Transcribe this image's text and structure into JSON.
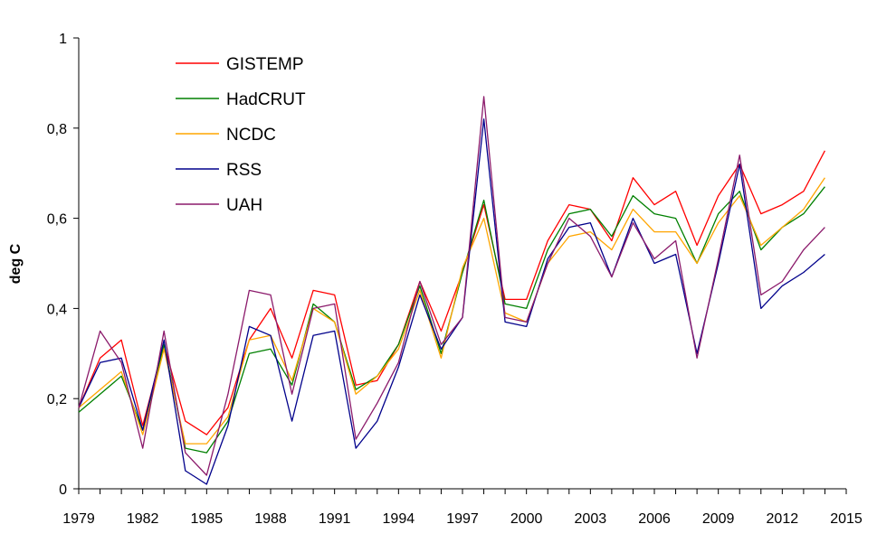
{
  "chart_data": {
    "type": "line",
    "title": "",
    "xlabel": "",
    "ylabel": "deg C",
    "xlim": [
      1979,
      2015
    ],
    "ylim": [
      0,
      1
    ],
    "x_ticks": [
      "1979",
      "1982",
      "1985",
      "1988",
      "1991",
      "1994",
      "1997",
      "2000",
      "2003",
      "2006",
      "2009",
      "2012",
      "2015"
    ],
    "y_ticks": [
      "0",
      "0,2",
      "0,4",
      "0,6",
      "0,8",
      "1"
    ],
    "grid": false,
    "legend_position": "top-left",
    "x": [
      1979,
      1980,
      1981,
      1982,
      1983,
      1984,
      1985,
      1986,
      1987,
      1988,
      1989,
      1990,
      1991,
      1992,
      1993,
      1994,
      1995,
      1996,
      1997,
      1998,
      1999,
      2000,
      2001,
      2002,
      2003,
      2004,
      2005,
      2006,
      2007,
      2008,
      2009,
      2010,
      2011,
      2012,
      2013,
      2014
    ],
    "series": [
      {
        "name": "GISTEMP",
        "color": "#ff0000",
        "values": [
          0.18,
          0.29,
          0.33,
          0.14,
          0.32,
          0.15,
          0.12,
          0.18,
          0.33,
          0.4,
          0.29,
          0.44,
          0.43,
          0.23,
          0.24,
          0.32,
          0.46,
          0.35,
          0.48,
          0.63,
          0.42,
          0.42,
          0.55,
          0.63,
          0.62,
          0.55,
          0.69,
          0.63,
          0.66,
          0.54,
          0.65,
          0.72,
          0.61,
          0.63,
          0.66,
          0.75
        ]
      },
      {
        "name": "HadCRUT",
        "color": "#008000",
        "values": [
          0.17,
          0.21,
          0.25,
          0.13,
          0.32,
          0.09,
          0.08,
          0.15,
          0.3,
          0.31,
          0.23,
          0.41,
          0.37,
          0.22,
          0.25,
          0.32,
          0.45,
          0.3,
          0.48,
          0.64,
          0.41,
          0.4,
          0.53,
          0.61,
          0.62,
          0.56,
          0.65,
          0.61,
          0.6,
          0.5,
          0.61,
          0.66,
          0.53,
          0.58,
          0.61,
          0.67
        ]
      },
      {
        "name": "NCDC",
        "color": "#ffa500",
        "values": [
          0.18,
          0.22,
          0.26,
          0.12,
          0.31,
          0.1,
          0.1,
          0.16,
          0.33,
          0.34,
          0.24,
          0.4,
          0.37,
          0.21,
          0.25,
          0.31,
          0.44,
          0.29,
          0.49,
          0.6,
          0.39,
          0.37,
          0.5,
          0.56,
          0.57,
          0.53,
          0.62,
          0.57,
          0.57,
          0.5,
          0.59,
          0.65,
          0.54,
          0.58,
          0.62,
          0.69
        ]
      },
      {
        "name": "RSS",
        "color": "#00008b",
        "values": [
          0.18,
          0.28,
          0.29,
          0.13,
          0.33,
          0.04,
          0.01,
          0.14,
          0.36,
          0.34,
          0.15,
          0.34,
          0.35,
          0.09,
          0.15,
          0.27,
          0.43,
          0.31,
          0.38,
          0.82,
          0.37,
          0.36,
          0.51,
          0.58,
          0.59,
          0.47,
          0.6,
          0.5,
          0.52,
          0.3,
          0.5,
          0.72,
          0.4,
          0.45,
          0.48,
          0.52
        ]
      },
      {
        "name": "UAH",
        "color": "#8b1a6b",
        "values": [
          0.18,
          0.35,
          0.28,
          0.09,
          0.35,
          0.08,
          0.03,
          0.21,
          0.44,
          0.43,
          0.21,
          0.4,
          0.41,
          0.11,
          0.19,
          0.28,
          0.46,
          0.32,
          0.38,
          0.87,
          0.38,
          0.37,
          0.5,
          0.6,
          0.56,
          0.47,
          0.59,
          0.51,
          0.55,
          0.29,
          0.51,
          0.74,
          0.43,
          0.46,
          0.53,
          0.58
        ]
      }
    ]
  }
}
